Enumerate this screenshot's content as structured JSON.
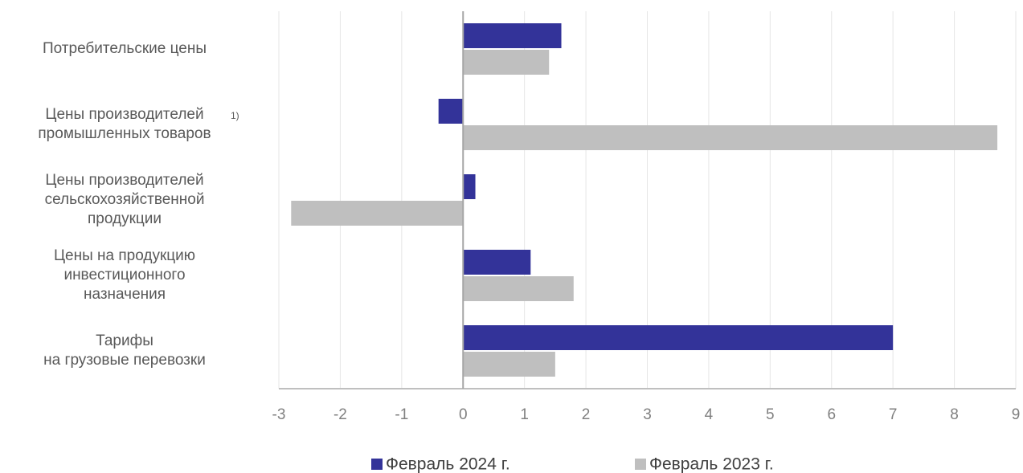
{
  "chart_data": {
    "type": "bar",
    "orientation": "horizontal",
    "categories": [
      "Потребительские цены",
      "Цены производителей\nпромышленных товаров",
      "Цены производителей\nсельскохозяйственной\nпродукции",
      "Цены на продукцию\nинвестиционного\nназначения",
      "Тарифы\nна грузовые перевозки"
    ],
    "annotations": [
      {
        "category": 1,
        "text": "1)"
      }
    ],
    "series": [
      {
        "name": "Февраль 2024 г.",
        "color": "#333399",
        "values": [
          1.6,
          -0.4,
          0.2,
          1.1,
          7.0
        ]
      },
      {
        "name": "Февраль 2023 г.",
        "color": "#bfbfbf",
        "values": [
          1.4,
          8.7,
          -2.8,
          1.8,
          1.5
        ]
      }
    ],
    "xlim": [
      -3,
      9
    ],
    "xticks": [
      -3,
      -2,
      -1,
      0,
      1,
      2,
      3,
      4,
      5,
      6,
      7,
      8,
      9
    ],
    "grid": true,
    "legend": "bottom"
  }
}
